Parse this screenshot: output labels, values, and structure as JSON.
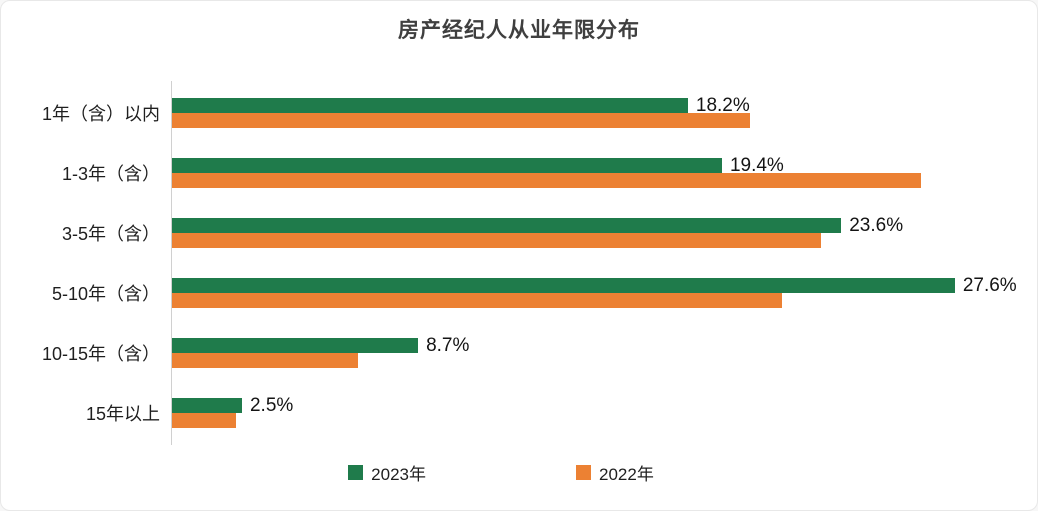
{
  "title": "房产经纪人从业年限分布",
  "colors": {
    "green": "#1f7b4b",
    "orange": "#ec8133",
    "axis_line": "#d0d0d0",
    "title_text": "#3f3f3f",
    "label_text": "#1f1f1f"
  },
  "chart_data": {
    "type": "bar",
    "orientation": "horizontal",
    "title": "房产经纪人从业年限分布",
    "categories": [
      "1年（含）以内",
      "1-3年（含）",
      "3-5年（含）",
      "5-10年（含）",
      "10-15年（含）",
      "15年以上"
    ],
    "series": [
      {
        "name": "2023年",
        "color": "#1f7b4b",
        "values": [
          18.2,
          19.4,
          23.6,
          27.6,
          8.7,
          2.5
        ],
        "data_labels": [
          "18.2%",
          "19.4%",
          "23.6%",
          "27.6%",
          "8.7%",
          "2.5%"
        ],
        "labels_visible": true
      },
      {
        "name": "2022年",
        "color": "#ec8133",
        "values": [
          20.4,
          26.4,
          22.9,
          21.5,
          6.6,
          2.3
        ],
        "data_labels": null,
        "labels_visible": false
      }
    ],
    "xlim": [
      0,
      30
    ],
    "grid": false,
    "legend_position": "bottom",
    "note": "2022 series values estimated from bar lengths; only 2023 series shows data labels"
  },
  "legend": {
    "items": [
      {
        "label": "2023年",
        "color": "#1f7b4b"
      },
      {
        "label": "2022年",
        "color": "#ec8133"
      }
    ]
  }
}
